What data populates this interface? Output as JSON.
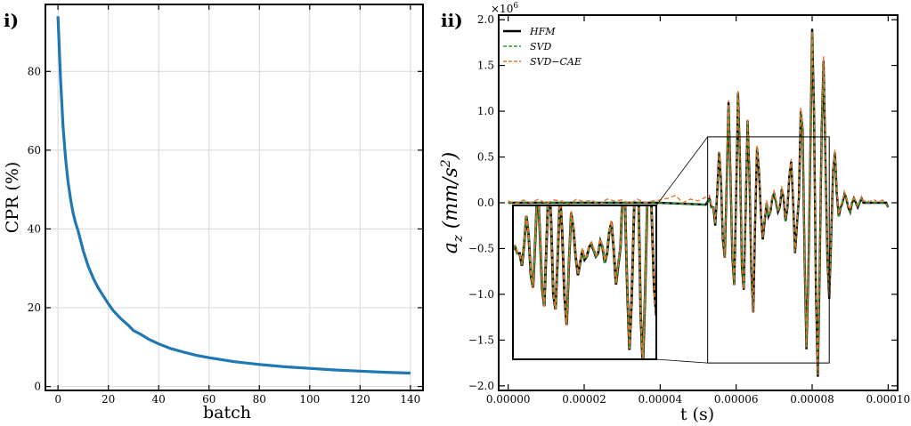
{
  "panels": {
    "left": {
      "label": "i)"
    },
    "right": {
      "label": "ii)"
    }
  },
  "chart_data": [
    {
      "type": "line",
      "title": "",
      "xlabel": "batch",
      "ylabel": "CPR (%)",
      "xlim": [
        -5,
        145
      ],
      "ylim": [
        -1,
        97
      ],
      "xticks": [
        0,
        20,
        40,
        60,
        80,
        100,
        120,
        140
      ],
      "yticks": [
        0,
        20,
        40,
        60,
        80
      ],
      "grid": true,
      "color": "#1f77b4",
      "series": [
        {
          "name": "CPR",
          "x": [
            0,
            1,
            2,
            3,
            4,
            5,
            6,
            7,
            8,
            9,
            10,
            12,
            14,
            16,
            18,
            20,
            22,
            25,
            28,
            30,
            33,
            36,
            40,
            45,
            50,
            55,
            60,
            70,
            80,
            90,
            100,
            110,
            120,
            130,
            140
          ],
          "y": [
            94,
            78,
            66,
            58,
            52,
            47.5,
            44,
            41.5,
            39.5,
            37,
            34.5,
            30.5,
            27.5,
            25,
            23,
            21,
            19.2,
            17.2,
            15.5,
            14.2,
            13.2,
            12,
            10.8,
            9.6,
            8.7,
            7.9,
            7.3,
            6.3,
            5.6,
            5.0,
            4.6,
            4.2,
            3.9,
            3.6,
            3.4
          ]
        }
      ]
    },
    {
      "type": "line",
      "title": "",
      "xlabel": "t (s)",
      "ylabel": "a_z (mm/s^2)",
      "exponent_label": "×10",
      "exponent_power": "6",
      "xlim": [
        -2.5e-06,
        0.0001025
      ],
      "ylim": [
        -2.05,
        2.05
      ],
      "xticks": [
        0,
        2e-05,
        4e-05,
        6e-05,
        8e-05,
        0.0001
      ],
      "xtick_labels": [
        "0.00000",
        "0.00002",
        "0.00004",
        "0.00006",
        "0.00008",
        "0.00010"
      ],
      "yticks": [
        -2.0,
        -1.5,
        -1.0,
        -0.5,
        0.0,
        0.5,
        1.0,
        1.5,
        2.0
      ],
      "ytick_labels": [
        "−2.0",
        "−1.5",
        "−1.0",
        "−0.5",
        "0.0",
        "0.5",
        "1.0",
        "1.5",
        "2.0"
      ],
      "legend_position": "top-left",
      "inset": {
        "t_range": [
          5.25e-05,
          8.45e-05
        ],
        "a_range": [
          -1.75,
          0.72
        ]
      },
      "series": [
        {
          "name": "HFM",
          "color": "#000000",
          "style": "solid",
          "t": [
            0,
            4e-05,
            5.2e-05,
            5.3e-05,
            5.35e-05,
            5.4e-05,
            5.45e-05,
            5.5e-05,
            5.55e-05,
            5.6e-05,
            5.65e-05,
            5.7e-05,
            5.75e-05,
            5.8e-05,
            5.85e-05,
            5.9e-05,
            5.95e-05,
            6e-05,
            6.05e-05,
            6.1e-05,
            6.15e-05,
            6.2e-05,
            6.25e-05,
            6.3e-05,
            6.35e-05,
            6.4e-05,
            6.45e-05,
            6.5e-05,
            6.55e-05,
            6.6e-05,
            6.65e-05,
            6.7e-05,
            6.75e-05,
            6.8e-05,
            6.85e-05,
            6.9e-05,
            6.95e-05,
            7e-05,
            7.05e-05,
            7.1e-05,
            7.15e-05,
            7.2e-05,
            7.25e-05,
            7.3e-05,
            7.35e-05,
            7.4e-05,
            7.45e-05,
            7.5e-05,
            7.55e-05,
            7.6e-05,
            7.65e-05,
            7.7e-05,
            7.75e-05,
            7.8e-05,
            7.85e-05,
            7.9e-05,
            7.95e-05,
            8e-05,
            8.05e-05,
            8.1e-05,
            8.15e-05,
            8.2e-05,
            8.25e-05,
            8.3e-05,
            8.35e-05,
            8.4e-05,
            8.45e-05,
            8.5e-05,
            8.55e-05,
            8.6e-05,
            8.65e-05,
            8.7e-05,
            8.75e-05,
            8.8e-05,
            8.85e-05,
            8.9e-05,
            8.95e-05,
            9e-05,
            9.05e-05,
            9.1e-05,
            9.15e-05,
            9.2e-05,
            9.25e-05,
            9.3e-05,
            9.35e-05,
            9.4e-05,
            9.45e-05,
            9.5e-05,
            9.55e-05,
            9.6e-05,
            9.65e-05,
            9.7e-05,
            9.75e-05,
            9.8e-05,
            9.85e-05,
            9.9e-05,
            9.95e-05,
            0.0001
          ],
          "a": [
            0,
            0,
            -0.02,
            0.05,
            -0.05,
            -0.05,
            -0.25,
            0.1,
            0.55,
            0.25,
            -0.4,
            -0.6,
            0.2,
            1.1,
            0.3,
            -0.6,
            -0.9,
            0.1,
            1.2,
            0.5,
            -0.7,
            -0.95,
            -0.1,
            0.9,
            0.3,
            -0.75,
            -1.2,
            -0.2,
            0.6,
            0.35,
            -0.1,
            -0.4,
            -0.2,
            0.0,
            -0.15,
            -0.1,
            0.05,
            0.1,
            0.0,
            -0.1,
            -0.05,
            0.15,
            0.05,
            -0.2,
            -0.05,
            0.3,
            0.45,
            0.0,
            -0.55,
            -0.25,
            0.05,
            1.0,
            0.8,
            -0.6,
            -1.6,
            -0.8,
            0.5,
            1.9,
            1.0,
            -1.0,
            -1.9,
            -0.7,
            0.8,
            1.55,
            0.5,
            -0.6,
            -1.05,
            -0.4,
            0.35,
            0.55,
            0.1,
            -0.15,
            -0.05,
            0.0,
            0.1,
            0.05,
            -0.05,
            -0.1,
            0.0,
            0.05,
            0.0,
            -0.05,
            0.0,
            0.05,
            0.0,
            0.0,
            0.0,
            0.0,
            0.0,
            0.0,
            0.0,
            0.0,
            0.0,
            0.0,
            0.0,
            0.0,
            0.0,
            -0.05
          ]
        },
        {
          "name": "SVD",
          "color": "#2ca02c",
          "style": "dashed",
          "t": [
            0,
            4e-05,
            5.2e-05,
            5.3e-05,
            5.35e-05,
            5.4e-05,
            5.45e-05,
            5.5e-05,
            5.55e-05,
            5.6e-05,
            5.65e-05,
            5.7e-05,
            5.75e-05,
            5.8e-05,
            5.85e-05,
            5.9e-05,
            5.95e-05,
            6e-05,
            6.05e-05,
            6.1e-05,
            6.15e-05,
            6.2e-05,
            6.25e-05,
            6.3e-05,
            6.35e-05,
            6.4e-05,
            6.45e-05,
            6.5e-05,
            6.55e-05,
            6.6e-05,
            6.65e-05,
            6.7e-05,
            6.75e-05,
            6.8e-05,
            6.85e-05,
            6.9e-05,
            6.95e-05,
            7e-05,
            7.05e-05,
            7.1e-05,
            7.15e-05,
            7.2e-05,
            7.25e-05,
            7.3e-05,
            7.35e-05,
            7.4e-05,
            7.45e-05,
            7.5e-05,
            7.55e-05,
            7.6e-05,
            7.65e-05,
            7.7e-05,
            7.75e-05,
            7.8e-05,
            7.85e-05,
            7.9e-05,
            7.95e-05,
            8e-05,
            8.05e-05,
            8.1e-05,
            8.15e-05,
            8.2e-05,
            8.25e-05,
            8.3e-05,
            8.35e-05,
            8.4e-05,
            8.45e-05,
            8.5e-05,
            8.55e-05,
            8.6e-05,
            8.65e-05,
            8.7e-05,
            8.75e-05,
            8.8e-05,
            8.85e-05,
            8.9e-05,
            8.95e-05,
            9e-05,
            9.05e-05,
            9.1e-05,
            9.15e-05,
            9.2e-05,
            9.25e-05,
            9.3e-05,
            9.35e-05,
            9.4e-05,
            9.45e-05,
            9.5e-05,
            9.55e-05,
            9.6e-05,
            9.65e-05,
            9.7e-05,
            9.75e-05,
            9.8e-05,
            9.85e-05,
            9.9e-05,
            9.95e-05,
            0.0001
          ],
          "a": [
            0,
            0,
            -0.02,
            0.05,
            -0.05,
            -0.05,
            -0.24,
            0.1,
            0.53,
            0.24,
            -0.39,
            -0.58,
            0.2,
            1.07,
            0.3,
            -0.58,
            -0.88,
            0.1,
            1.17,
            0.49,
            -0.68,
            -0.93,
            -0.1,
            0.88,
            0.3,
            -0.73,
            -1.17,
            -0.2,
            0.59,
            0.34,
            -0.1,
            -0.39,
            -0.2,
            0.0,
            -0.15,
            -0.1,
            0.05,
            0.1,
            0.0,
            -0.1,
            -0.05,
            0.15,
            0.05,
            -0.2,
            -0.05,
            0.29,
            0.44,
            0.0,
            -0.54,
            -0.25,
            0.05,
            0.98,
            0.78,
            -0.59,
            -1.57,
            -0.78,
            0.49,
            1.86,
            0.98,
            -0.98,
            -1.86,
            -0.69,
            0.78,
            1.52,
            0.49,
            -0.59,
            -1.03,
            -0.39,
            0.34,
            0.54,
            0.1,
            -0.15,
            -0.05,
            0.0,
            0.1,
            0.05,
            -0.05,
            -0.1,
            0.0,
            0.05,
            0.0,
            -0.05,
            0.0,
            0.05,
            0.0,
            0.0,
            0.0,
            0.0,
            0.0,
            0.0,
            0.0,
            0.0,
            0.0,
            0.0,
            0.0,
            0.0,
            0.0,
            -0.05
          ]
        },
        {
          "name": "SVD−CAE",
          "color": "#e8742a",
          "style": "dashed",
          "t": [
            0,
            2e-06,
            4e-06,
            6e-06,
            8e-06,
            1e-05,
            1.2e-05,
            1.4e-05,
            1.6e-05,
            1.8e-05,
            2e-05,
            2.2e-05,
            2.4e-05,
            2.6e-05,
            2.8e-05,
            3e-05,
            3.2e-05,
            3.4e-05,
            3.6e-05,
            3.8e-05,
            4e-05,
            4.2e-05,
            4.4e-05,
            4.6e-05,
            4.8e-05,
            5e-05,
            5.2e-05,
            5.3e-05,
            5.35e-05,
            5.4e-05,
            5.45e-05,
            5.5e-05,
            5.55e-05,
            5.6e-05,
            5.65e-05,
            5.7e-05,
            5.75e-05,
            5.8e-05,
            5.85e-05,
            5.9e-05,
            5.95e-05,
            6e-05,
            6.05e-05,
            6.1e-05,
            6.15e-05,
            6.2e-05,
            6.25e-05,
            6.3e-05,
            6.35e-05,
            6.4e-05,
            6.45e-05,
            6.5e-05,
            6.55e-05,
            6.6e-05,
            6.65e-05,
            6.7e-05,
            6.75e-05,
            6.8e-05,
            6.85e-05,
            6.9e-05,
            6.95e-05,
            7e-05,
            7.05e-05,
            7.1e-05,
            7.15e-05,
            7.2e-05,
            7.25e-05,
            7.3e-05,
            7.35e-05,
            7.4e-05,
            7.45e-05,
            7.5e-05,
            7.55e-05,
            7.6e-05,
            7.65e-05,
            7.7e-05,
            7.75e-05,
            7.8e-05,
            7.85e-05,
            7.9e-05,
            7.95e-05,
            8e-05,
            8.05e-05,
            8.1e-05,
            8.15e-05,
            8.2e-05,
            8.25e-05,
            8.3e-05,
            8.35e-05,
            8.4e-05,
            8.45e-05,
            8.5e-05,
            8.55e-05,
            8.6e-05,
            8.65e-05,
            8.7e-05,
            8.75e-05,
            8.8e-05,
            8.85e-05,
            8.9e-05,
            8.95e-05,
            9e-05,
            9.05e-05,
            9.1e-05,
            9.15e-05,
            9.2e-05,
            9.25e-05,
            9.3e-05,
            9.35e-05,
            9.4e-05,
            9.45e-05,
            9.5e-05,
            9.55e-05,
            9.6e-05,
            9.65e-05,
            9.7e-05,
            9.75e-05,
            9.8e-05,
            9.85e-05,
            9.9e-05,
            9.95e-05,
            0.0001
          ],
          "a": [
            0.02,
            -0.01,
            0.03,
            0.0,
            0.04,
            -0.01,
            0.03,
            0.02,
            -0.02,
            0.04,
            0.01,
            0.03,
            -0.02,
            0.04,
            0.02,
            0.03,
            -0.01,
            0.04,
            0.0,
            0.02,
            0.03,
            0.05,
            0.08,
            0.0,
            0.04,
            0.02,
            0.06,
            0.08,
            -0.03,
            -0.05,
            -0.22,
            0.13,
            0.56,
            0.27,
            -0.37,
            -0.6,
            0.24,
            1.12,
            0.33,
            -0.57,
            -0.9,
            0.14,
            1.23,
            0.52,
            -0.67,
            -0.95,
            -0.06,
            0.92,
            0.33,
            -0.73,
            -1.2,
            -0.17,
            0.63,
            0.38,
            -0.08,
            -0.38,
            -0.17,
            0.03,
            -0.12,
            -0.08,
            0.08,
            0.13,
            0.02,
            -0.08,
            -0.03,
            0.18,
            0.08,
            -0.17,
            -0.03,
            0.34,
            0.48,
            0.03,
            -0.53,
            -0.23,
            0.08,
            1.04,
            0.83,
            -0.57,
            -1.58,
            -0.78,
            0.53,
            1.88,
            1.03,
            -0.97,
            -1.88,
            -0.67,
            0.83,
            1.6,
            0.53,
            -0.57,
            -1.03,
            -0.37,
            0.38,
            0.58,
            0.13,
            -0.13,
            -0.03,
            0.03,
            0.12,
            0.07,
            -0.03,
            -0.08,
            0.02,
            0.07,
            0.02,
            -0.03,
            0.02,
            0.07,
            0.02,
            0.02,
            0.03,
            0.01,
            0.02,
            0.02,
            0.03,
            0.01,
            0.02,
            0.02,
            0.03,
            0.01,
            -0.03
          ]
        }
      ]
    }
  ]
}
